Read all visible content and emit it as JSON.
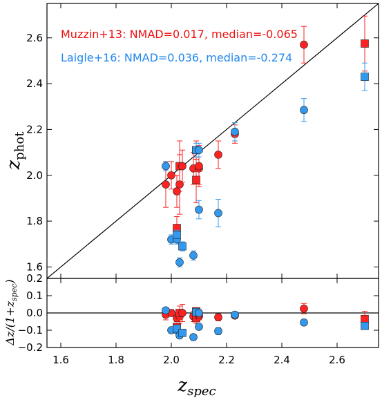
{
  "chart_data": [
    {
      "type": "scatter",
      "panel": "top",
      "xlabel_main": "z",
      "xlabel_sub": "spec",
      "ylabel_main": "z",
      "ylabel_sub": "phot",
      "xlim": [
        1.55,
        2.75
      ],
      "ylim": [
        1.55,
        2.75
      ],
      "xticks": [
        "1.6",
        "1.8",
        "2.0",
        "2.2",
        "2.4",
        "2.6"
      ],
      "yticks": [
        "1.6",
        "1.8",
        "2.0",
        "2.2",
        "2.4",
        "2.6"
      ],
      "one_to_one_line": true,
      "legend_text": [
        {
          "text": "Muzzin+13: NMAD=0.017, median=-0.065",
          "color": "#ee1111"
        },
        {
          "text": "Laigle+16: NMAD=0.036, median=-0.274",
          "color": "#2288ee"
        }
      ],
      "series": [
        {
          "name": "Muzzin+13",
          "color": "#ff2222",
          "points": [
            {
              "x": 1.98,
              "y": 1.96,
              "err": 0.1,
              "m": "circle"
            },
            {
              "x": 2.0,
              "y": 2.0,
              "err": 0.06,
              "m": "circle"
            },
            {
              "x": 2.02,
              "y": 1.93,
              "err": 0.07,
              "m": "circle"
            },
            {
              "x": 2.03,
              "y": 1.96,
              "err": 0.13,
              "m": "circle"
            },
            {
              "x": 2.03,
              "y": 2.04,
              "err": 0.11,
              "m": "square"
            },
            {
              "x": 2.04,
              "y": 2.04,
              "err": 0.07,
              "m": "circle"
            },
            {
              "x": 2.02,
              "y": 1.77,
              "err": 0.05,
              "m": "square"
            },
            {
              "x": 2.08,
              "y": 2.03,
              "err": 0.07,
              "m": "circle"
            },
            {
              "x": 2.09,
              "y": 1.98,
              "err": 0.1,
              "m": "square"
            },
            {
              "x": 2.1,
              "y": 2.03,
              "err": 0.07,
              "m": "circle"
            },
            {
              "x": 2.1,
              "y": 2.04,
              "err": 0.09,
              "m": "circle"
            },
            {
              "x": 2.09,
              "y": 2.11,
              "err": 0.04,
              "m": "square"
            },
            {
              "x": 2.17,
              "y": 2.09,
              "err": 0.06,
              "m": "circle"
            },
            {
              "x": 2.23,
              "y": 2.18,
              "err": 0.04,
              "m": "circle"
            },
            {
              "x": 2.48,
              "y": 2.57,
              "err": 0.08,
              "m": "circle"
            },
            {
              "x": 2.7,
              "y": 2.575,
              "err": 0.12,
              "m": "square"
            }
          ]
        },
        {
          "name": "Laigle+16",
          "color": "#3399ee",
          "points": [
            {
              "x": 1.98,
              "y": 2.04,
              "err": 0.02,
              "m": "circle"
            },
            {
              "x": 2.0,
              "y": 1.72,
              "err": 0.02,
              "m": "circle"
            },
            {
              "x": 2.02,
              "y": 1.72,
              "err": 0.02,
              "m": "circle"
            },
            {
              "x": 2.02,
              "y": 1.74,
              "err": 0.02,
              "m": "square"
            },
            {
              "x": 2.03,
              "y": 1.62,
              "err": 0.02,
              "m": "circle"
            },
            {
              "x": 2.04,
              "y": 1.69,
              "err": 0.02,
              "m": "square"
            },
            {
              "x": 2.08,
              "y": 1.65,
              "err": 0.02,
              "m": "circle"
            },
            {
              "x": 2.1,
              "y": 1.85,
              "err": 0.04,
              "m": "circle"
            },
            {
              "x": 2.09,
              "y": 2.11,
              "err": 0.03,
              "m": "square"
            },
            {
              "x": 2.1,
              "y": 2.11,
              "err": 0.03,
              "m": "circle"
            },
            {
              "x": 2.17,
              "y": 1.835,
              "err": 0.06,
              "m": "circle"
            },
            {
              "x": 2.23,
              "y": 2.19,
              "err": 0.04,
              "m": "circle"
            },
            {
              "x": 2.48,
              "y": 2.285,
              "err": 0.05,
              "m": "circle"
            },
            {
              "x": 2.7,
              "y": 2.43,
              "err": 0.06,
              "m": "square"
            }
          ]
        }
      ]
    },
    {
      "type": "scatter",
      "panel": "bottom",
      "ylabel": "Δz/(1+z_spec)",
      "ylim": [
        -0.2,
        0.2
      ],
      "yticks": [
        "−0.2",
        "−0.1",
        "0.0",
        "0.1",
        "0.2"
      ],
      "zero_line": true,
      "series": [
        {
          "name": "Muzzin+13",
          "color": "#ff2222",
          "points": [
            {
              "x": 1.98,
              "y": -0.01,
              "err": 0.03,
              "m": "circle"
            },
            {
              "x": 2.0,
              "y": 0.0,
              "err": 0.02,
              "m": "circle"
            },
            {
              "x": 2.02,
              "y": -0.03,
              "err": 0.02,
              "m": "circle"
            },
            {
              "x": 2.03,
              "y": -0.02,
              "err": 0.04,
              "m": "circle"
            },
            {
              "x": 2.03,
              "y": 0.0,
              "err": 0.04,
              "m": "square"
            },
            {
              "x": 2.04,
              "y": 0.0,
              "err": 0.05,
              "m": "circle"
            },
            {
              "x": 2.02,
              "y": -0.08,
              "err": 0.02,
              "m": "square"
            },
            {
              "x": 2.08,
              "y": -0.02,
              "err": 0.03,
              "m": "circle"
            },
            {
              "x": 2.09,
              "y": -0.03,
              "err": 0.03,
              "m": "square"
            },
            {
              "x": 2.1,
              "y": -0.02,
              "err": 0.02,
              "m": "circle"
            },
            {
              "x": 2.1,
              "y": -0.01,
              "err": 0.03,
              "m": "circle"
            },
            {
              "x": 2.09,
              "y": 0.01,
              "err": 0.02,
              "m": "square"
            },
            {
              "x": 2.17,
              "y": -0.025,
              "err": 0.02,
              "m": "circle"
            },
            {
              "x": 2.23,
              "y": -0.015,
              "err": 0.015,
              "m": "circle"
            },
            {
              "x": 2.48,
              "y": 0.025,
              "err": 0.03,
              "m": "circle"
            },
            {
              "x": 2.7,
              "y": -0.035,
              "err": 0.045,
              "m": "square"
            }
          ]
        },
        {
          "name": "Laigle+16",
          "color": "#3399ee",
          "points": [
            {
              "x": 1.98,
              "y": 0.015,
              "err": 0.01,
              "m": "circle"
            },
            {
              "x": 2.0,
              "y": -0.1,
              "err": 0.01,
              "m": "circle"
            },
            {
              "x": 2.02,
              "y": -0.1,
              "err": 0.01,
              "m": "circle"
            },
            {
              "x": 2.02,
              "y": -0.09,
              "err": 0.01,
              "m": "square"
            },
            {
              "x": 2.03,
              "y": -0.13,
              "err": 0.01,
              "m": "circle"
            },
            {
              "x": 2.04,
              "y": -0.115,
              "err": 0.01,
              "m": "square"
            },
            {
              "x": 2.08,
              "y": -0.14,
              "err": 0.01,
              "m": "circle"
            },
            {
              "x": 2.1,
              "y": -0.08,
              "err": 0.015,
              "m": "circle"
            },
            {
              "x": 2.09,
              "y": 0.005,
              "err": 0.01,
              "m": "square"
            },
            {
              "x": 2.1,
              "y": 0.0,
              "err": 0.01,
              "m": "circle"
            },
            {
              "x": 2.17,
              "y": -0.105,
              "err": 0.02,
              "m": "circle"
            },
            {
              "x": 2.23,
              "y": -0.01,
              "err": 0.01,
              "m": "circle"
            },
            {
              "x": 2.48,
              "y": -0.055,
              "err": 0.015,
              "m": "circle"
            },
            {
              "x": 2.7,
              "y": -0.075,
              "err": 0.015,
              "m": "square"
            }
          ]
        }
      ]
    }
  ]
}
